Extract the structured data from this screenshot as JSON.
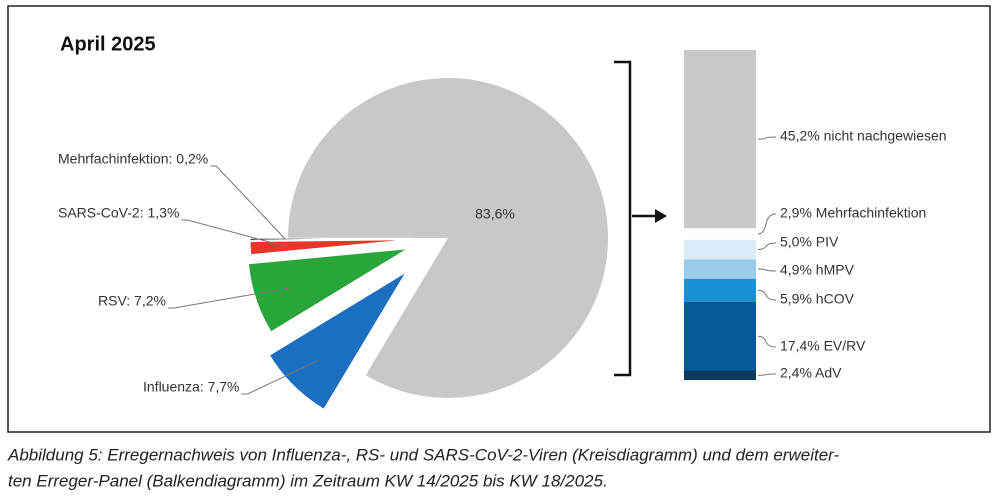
{
  "chart_data": [
    {
      "type": "pie",
      "title": "April 2025",
      "values": [
        83.6,
        0.2,
        1.3,
        7.2,
        7.7
      ],
      "value_labels": [
        "83,6%",
        "Mehrfachinfektion: 0,2%",
        "SARS-CoV-2: 1,3%",
        "RSV: 7,2%",
        "Influenza: 7,7%"
      ],
      "colors": [
        "#c8c8c8",
        "#111111",
        "#e8352a",
        "#2aa53a",
        "#1a6fc0"
      ]
    },
    {
      "type": "stacked-bar",
      "values": [
        2.4,
        17.4,
        5.9,
        4.9,
        5.0,
        2.9,
        45.2
      ],
      "value_labels": [
        "2,4% AdV",
        "17,4% EV/RV",
        "5,9% hCOV",
        "4,9% hMPV",
        "5,0% PIV",
        "2,9% Mehrfachinfektion",
        "45,2% nicht nachgewiesen"
      ],
      "colors": [
        "#0d3a62",
        "#035a97",
        "#1a90d2",
        "#9ccbea",
        "#dcebf8",
        "#ffffff",
        "#c8c8c8"
      ]
    }
  ],
  "caption": [
    "Abbildung 5: Erregernachweis von Influenza-, RS- und SARS-CoV-2-Viren (Kreisdiagramm) und dem erweiter-",
    "ten Erreger-Panel (Balkendiagramm) im Zeitraum KW 14/2025 bis KW 18/2025."
  ]
}
